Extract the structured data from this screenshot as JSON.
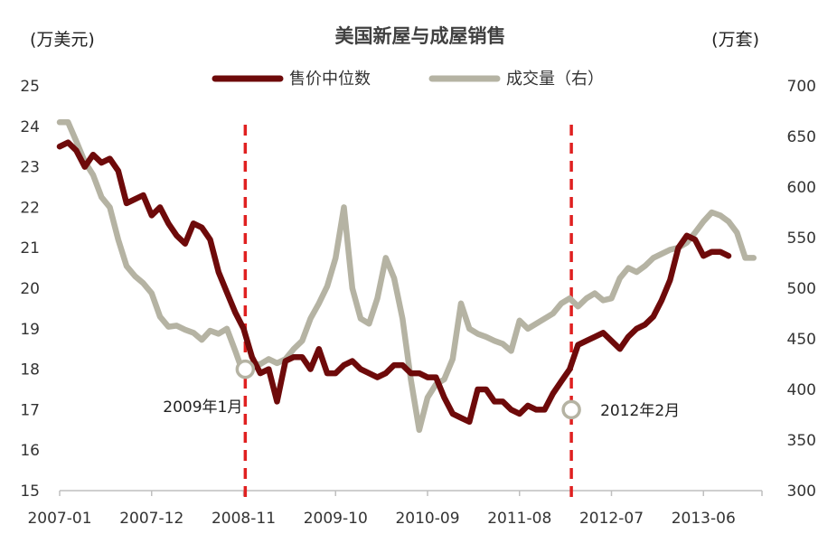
{
  "chart_data": {
    "type": "line",
    "title": "美国新屋与成屋销售",
    "y_left_unit": "(万美元)",
    "y_right_unit": "(万套)",
    "y_left_ticks": [
      "25",
      "24",
      "23",
      "22",
      "21",
      "20",
      "19",
      "18",
      "17",
      "16",
      "15"
    ],
    "y_right_ticks": [
      "700",
      "650",
      "600",
      "550",
      "500",
      "450",
      "400",
      "350",
      "300"
    ],
    "ylim_left": [
      15,
      25
    ],
    "ylim_right": [
      300,
      700
    ],
    "x_tick_labels": [
      "2007-01",
      "2007-12",
      "2008-11",
      "2009-10",
      "2010-09",
      "2011-08",
      "2012-07",
      "2013-06"
    ],
    "x_tick_months": [
      0,
      11,
      22,
      33,
      44,
      55,
      66,
      77
    ],
    "x_last_month": 84,
    "legend_position": "top-center",
    "series": [
      {
        "name": "售价中位数",
        "axis": "left",
        "color": "#6e0a0a",
        "points": [
          [
            0,
            23.5
          ],
          [
            1,
            23.6
          ],
          [
            2,
            23.4
          ],
          [
            3,
            23.0
          ],
          [
            4,
            23.3
          ],
          [
            5,
            23.1
          ],
          [
            6,
            23.2
          ],
          [
            7,
            22.9
          ],
          [
            8,
            22.1
          ],
          [
            9,
            22.2
          ],
          [
            10,
            22.3
          ],
          [
            11,
            21.8
          ],
          [
            12,
            22.0
          ],
          [
            13,
            21.6
          ],
          [
            14,
            21.3
          ],
          [
            15,
            21.1
          ],
          [
            16,
            21.6
          ],
          [
            17,
            21.5
          ],
          [
            18,
            21.2
          ],
          [
            19,
            20.4
          ],
          [
            20,
            19.9
          ],
          [
            21,
            19.4
          ],
          [
            22,
            19.0
          ],
          [
            23,
            18.3
          ],
          [
            24,
            17.9
          ],
          [
            25,
            18.0
          ],
          [
            26,
            17.2
          ],
          [
            27,
            18.2
          ],
          [
            28,
            18.3
          ],
          [
            29,
            18.3
          ],
          [
            30,
            18.0
          ],
          [
            31,
            18.5
          ],
          [
            32,
            17.9
          ],
          [
            33,
            17.9
          ],
          [
            34,
            18.1
          ],
          [
            35,
            18.2
          ],
          [
            36,
            18.0
          ],
          [
            37,
            17.9
          ],
          [
            38,
            17.8
          ],
          [
            39,
            17.9
          ],
          [
            40,
            18.1
          ],
          [
            41,
            18.1
          ],
          [
            42,
            17.9
          ],
          [
            43,
            17.9
          ],
          [
            44,
            17.8
          ],
          [
            45,
            17.8
          ],
          [
            46,
            17.3
          ],
          [
            47,
            16.9
          ],
          [
            48,
            16.8
          ],
          [
            49,
            16.7
          ],
          [
            50,
            17.5
          ],
          [
            51,
            17.5
          ],
          [
            52,
            17.2
          ],
          [
            53,
            17.2
          ],
          [
            54,
            17.0
          ],
          [
            55,
            16.9
          ],
          [
            56,
            17.1
          ],
          [
            57,
            17.0
          ],
          [
            58,
            17.0
          ],
          [
            59,
            17.4
          ],
          [
            60,
            17.7
          ],
          [
            61,
            18.0
          ],
          [
            62,
            18.6
          ],
          [
            63,
            18.7
          ],
          [
            64,
            18.8
          ],
          [
            65,
            18.9
          ],
          [
            66,
            18.7
          ],
          [
            67,
            18.5
          ],
          [
            68,
            18.8
          ],
          [
            69,
            19.0
          ],
          [
            70,
            19.1
          ],
          [
            71,
            19.3
          ],
          [
            72,
            19.7
          ],
          [
            73,
            20.2
          ],
          [
            74,
            21.0
          ],
          [
            75,
            21.3
          ],
          [
            76,
            21.2
          ],
          [
            77,
            20.8
          ],
          [
            78,
            20.9
          ],
          [
            79,
            20.9
          ],
          [
            80,
            20.8
          ]
        ]
      },
      {
        "name": "成交量（右）",
        "axis": "right",
        "color": "#b5b3a3",
        "points": [
          [
            0,
            664
          ],
          [
            1,
            664
          ],
          [
            2,
            645
          ],
          [
            3,
            625
          ],
          [
            4,
            612
          ],
          [
            5,
            590
          ],
          [
            6,
            580
          ],
          [
            7,
            548
          ],
          [
            8,
            522
          ],
          [
            9,
            512
          ],
          [
            10,
            505
          ],
          [
            11,
            495
          ],
          [
            12,
            472
          ],
          [
            13,
            462
          ],
          [
            14,
            463
          ],
          [
            15,
            459
          ],
          [
            16,
            456
          ],
          [
            17,
            449
          ],
          [
            18,
            458
          ],
          [
            19,
            455
          ],
          [
            20,
            460
          ],
          [
            21,
            438
          ],
          [
            22,
            415
          ],
          [
            23,
            425
          ],
          [
            24,
            425
          ],
          [
            25,
            430
          ],
          [
            26,
            426
          ],
          [
            27,
            430
          ],
          [
            28,
            440
          ],
          [
            29,
            448
          ],
          [
            30,
            470
          ],
          [
            31,
            485
          ],
          [
            32,
            502
          ],
          [
            33,
            530
          ],
          [
            34,
            580
          ],
          [
            35,
            500
          ],
          [
            36,
            470
          ],
          [
            37,
            465
          ],
          [
            38,
            490
          ],
          [
            39,
            530
          ],
          [
            40,
            510
          ],
          [
            41,
            470
          ],
          [
            42,
            410
          ],
          [
            43,
            360
          ],
          [
            44,
            392
          ],
          [
            45,
            405
          ],
          [
            46,
            410
          ],
          [
            47,
            430
          ],
          [
            48,
            485
          ],
          [
            49,
            460
          ],
          [
            50,
            455
          ],
          [
            51,
            452
          ],
          [
            52,
            448
          ],
          [
            53,
            445
          ],
          [
            54,
            438
          ],
          [
            55,
            468
          ],
          [
            56,
            460
          ],
          [
            57,
            465
          ],
          [
            58,
            470
          ],
          [
            59,
            475
          ],
          [
            60,
            485
          ],
          [
            61,
            490
          ],
          [
            62,
            482
          ],
          [
            63,
            490
          ],
          [
            64,
            495
          ],
          [
            65,
            488
          ],
          [
            66,
            490
          ],
          [
            67,
            510
          ],
          [
            68,
            520
          ],
          [
            69,
            516
          ],
          [
            70,
            522
          ],
          [
            71,
            530
          ],
          [
            72,
            534
          ],
          [
            73,
            538
          ],
          [
            74,
            540
          ],
          [
            75,
            545
          ],
          [
            76,
            555
          ],
          [
            77,
            566
          ],
          [
            78,
            575
          ],
          [
            79,
            572
          ],
          [
            80,
            566
          ],
          [
            81,
            555
          ],
          [
            82,
            530
          ],
          [
            83,
            530
          ]
        ]
      }
    ],
    "annotations": [
      {
        "text": "2009年1月",
        "month": 22.2,
        "series": "售价中位数",
        "value": 18.0
      },
      {
        "text": "2012年2月",
        "month": 61.2,
        "series": "售价中位数",
        "value": 17.0
      }
    ],
    "vline_color": "#e02020"
  }
}
